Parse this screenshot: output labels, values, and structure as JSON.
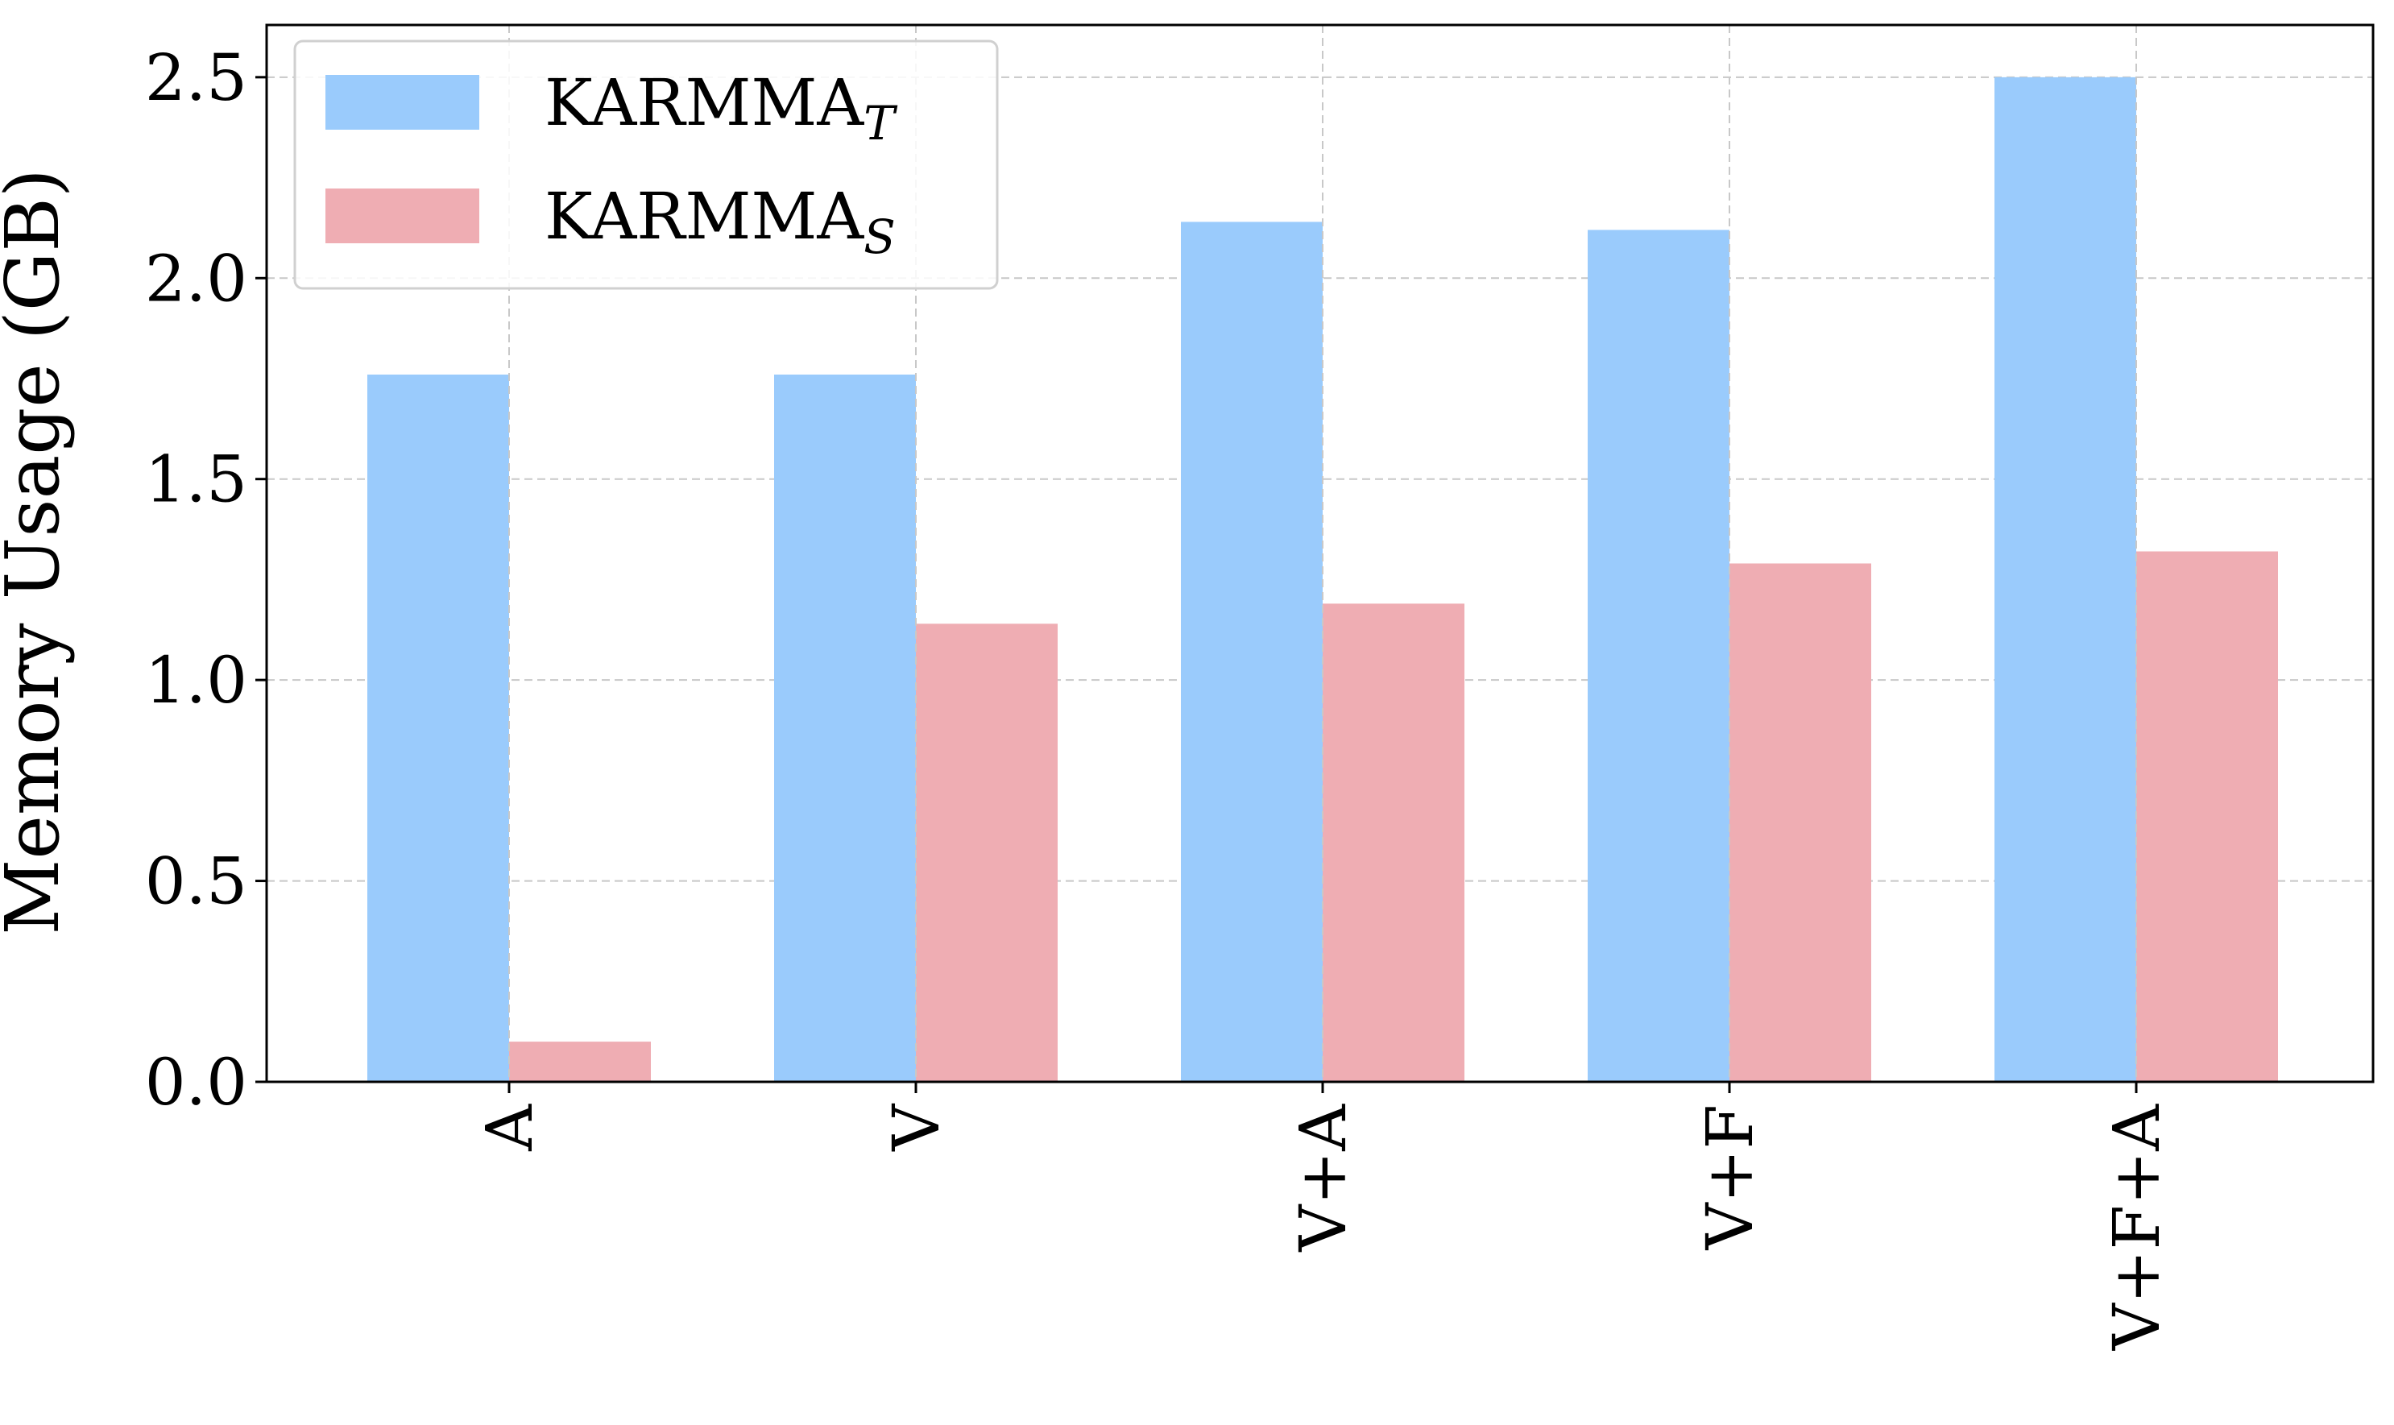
{
  "chart_data": {
    "type": "bar",
    "title": "",
    "xlabel": "",
    "ylabel": "Memory Usage (GB)",
    "ylim": [
      0,
      2.63
    ],
    "yticks": [
      0.0,
      0.5,
      1.0,
      1.5,
      2.0,
      2.5
    ],
    "ytick_labels": [
      "0.0",
      "0.5",
      "1.0",
      "1.5",
      "2.0",
      "2.5"
    ],
    "categories": [
      "A",
      "V",
      "V+A",
      "V+F",
      "V+F+A"
    ],
    "grid": true,
    "legend_position": "top-left",
    "series": [
      {
        "name": "KARMMA",
        "subscript": "T",
        "color": "#9ACBFC",
        "values": [
          1.76,
          1.76,
          2.14,
          2.12,
          2.5
        ]
      },
      {
        "name": "KARMMA",
        "subscript": "S",
        "color": "#EFADB3",
        "values": [
          0.1,
          1.14,
          1.19,
          1.29,
          1.32
        ]
      }
    ]
  }
}
